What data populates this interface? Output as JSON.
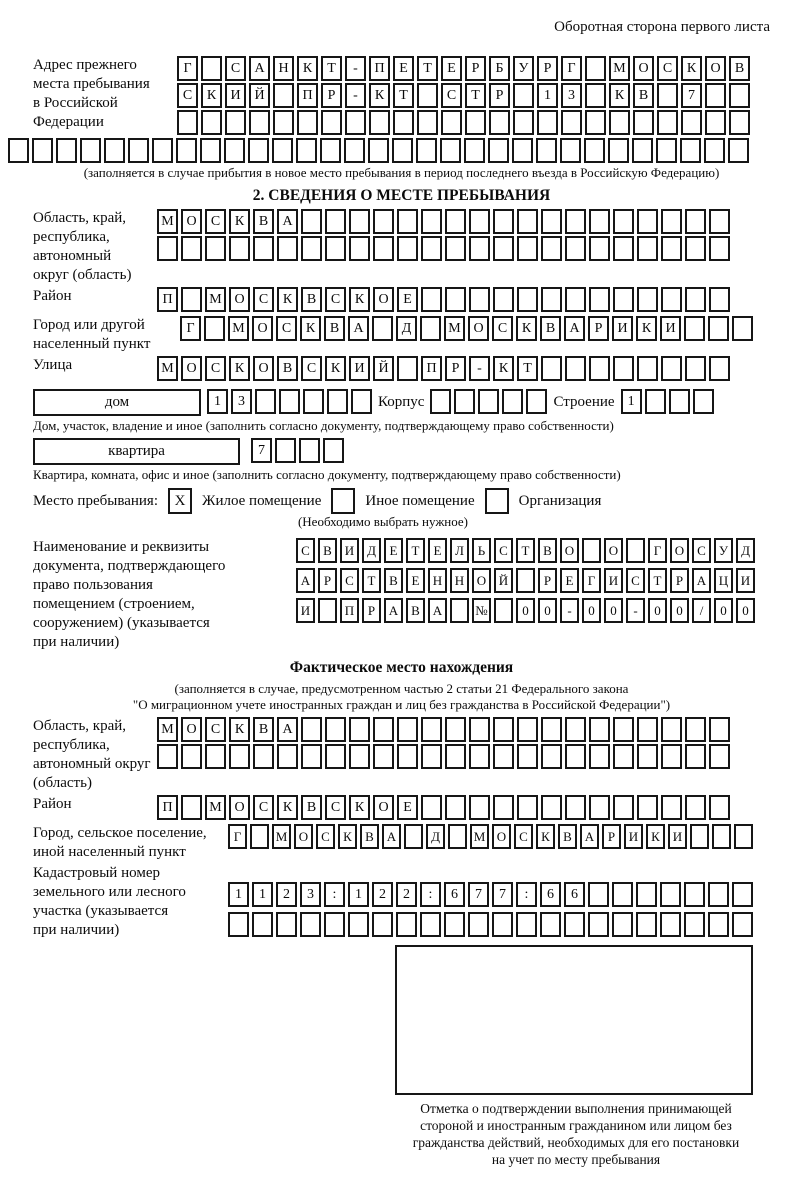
{
  "page": {
    "header_note": "Оборотная сторона первого листа"
  },
  "prev_address": {
    "label": "Адрес прежнего\nместа пребывания\nв Российской\nФедерации",
    "rows": [
      {
        "text": "Г САНКТ-ПЕТЕРБУРГ МОСКОВ",
        "len": 24
      },
      {
        "text": "СКИЙ ПР-КТ СТР 13 КВ 7",
        "len": 24
      },
      {
        "text": "",
        "len": 24
      }
    ],
    "full_row": {
      "text": "",
      "len": 31
    },
    "caption": "(заполняется в случае прибытия в новое место пребывания в период последнего въезда в Российскую Федерацию)"
  },
  "section2": {
    "title": "2. СВЕДЕНИЯ О МЕСТЕ ПРЕБЫВАНИЯ",
    "oblast": {
      "label": "Область, край,\nреспублика,\nавтономный\nокруг (область)",
      "rows": [
        {
          "text": "МОСКВА",
          "len": 24
        },
        {
          "text": "",
          "len": 24
        }
      ]
    },
    "raion": {
      "label": "Район",
      "row": {
        "text": "П МОСКВСКОЕ",
        "len": 24
      }
    },
    "gorod": {
      "label": "Город или другой\nнаселенный пункт",
      "row": {
        "text": "Г МОСКВА Д МОСКВАРИКИ",
        "len": 24
      }
    },
    "ulitsa": {
      "label": "Улица",
      "row": {
        "text": "МОСКОВСКИЙ ПР-КТ",
        "len": 24
      }
    },
    "dom": {
      "box_label": "дом",
      "row": {
        "text": "13",
        "len": 7
      },
      "korpus_label": "Корпус",
      "korpus_row": {
        "text": "",
        "len": 5
      },
      "stroenie_label": "Строение",
      "stroenie_row": {
        "text": "1",
        "len": 4
      },
      "caption": "Дом, участок, владение и иное (заполнить согласно документу, подтверждающему право собственности)"
    },
    "kvartira": {
      "box_label": "квартира",
      "row": {
        "text": "7",
        "len": 4
      },
      "caption": "Квартира, комната, офис и иное (заполнить согласно документу, подтверждающему право собственности)"
    },
    "mesto": {
      "label": "Место пребывания:",
      "options": [
        {
          "mark": "X",
          "label": "Жилое помещение"
        },
        {
          "mark": "",
          "label": "Иное помещение"
        },
        {
          "mark": "",
          "label": "Организация"
        }
      ],
      "caption": "(Необходимо выбрать нужное)"
    },
    "doc": {
      "label": "Наименование и реквизиты\nдокумента, подтверждающего\nправо пользования\nпомещением (строением,\nсооружением) (указывается\nпри наличии)",
      "rows": [
        {
          "text": "СВИДЕТЕЛЬСТВО О ГОСУД",
          "len": 21
        },
        {
          "text": "АРСТВЕННОЙ РЕГИСТРАЦИ",
          "len": 21
        },
        {
          "text": "И ПРАВА № 00-00-00/000",
          "len": 21
        }
      ]
    }
  },
  "fact": {
    "title": "Фактическое место нахождения",
    "caption_line1": "(заполняется в случае, предусмотренном частью 2 статьи 21 Федерального закона",
    "caption_line2": "\"О миграционном учете иностранных граждан и лиц без гражданства в Российской Федерации\")",
    "oblast": {
      "label": "Область, край,\nреспублика,\nавтономный округ\n(область)",
      "rows": [
        {
          "text": "МОСКВА",
          "len": 24
        },
        {
          "text": "",
          "len": 24
        }
      ]
    },
    "raion": {
      "label": "Район",
      "row": {
        "text": "П МОСКВСКОЕ",
        "len": 24
      }
    },
    "gorod": {
      "label": "Город, сельское поселение,\nиной населенный пункт",
      "row": {
        "text": "Г МОСКВА Д МОСКВАРИКИ",
        "len": 24
      }
    },
    "kadastr": {
      "label": "Кадастровый номер\nземельного или лесного\nучастка (указывается\nпри наличии)",
      "rows": [
        {
          "text": "1123:122:677:66",
          "len": 22
        },
        {
          "text": "",
          "len": 22
        }
      ]
    },
    "stamp_note": "Отметка о подтверждении выполнения принимающей\nстороной и иностранным гражданином или лицом без\nгражданства действий, необходимых для его постановки\nна учет по месту пребывания"
  }
}
